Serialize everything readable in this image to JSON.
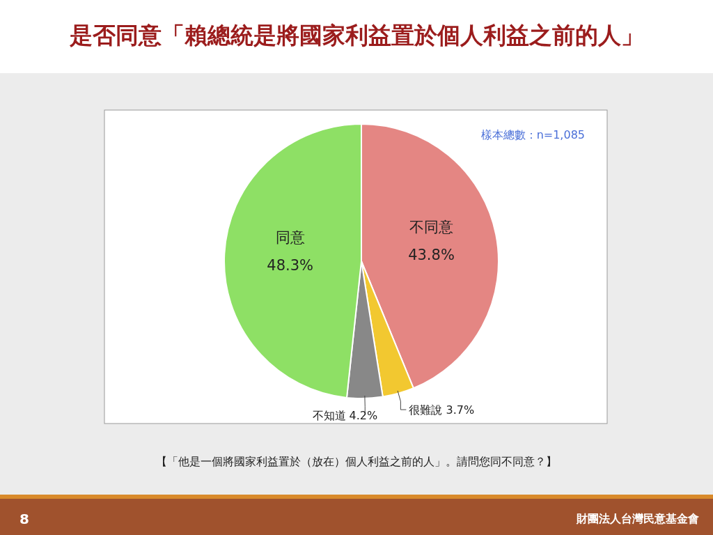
{
  "chart_data": {
    "type": "pie",
    "title": "是否同意「賴總統是將國家利益置於個人利益之前的人」",
    "categories": [
      "不同意",
      "很難說",
      "不知道",
      "同意"
    ],
    "values": [
      43.8,
      3.7,
      4.2,
      48.3
    ],
    "colors": [
      "#e48683",
      "#f2c830",
      "#888888",
      "#8ee065"
    ],
    "value_labels": [
      "43.8%",
      "3.7%",
      "4.2%",
      "48.3%"
    ],
    "legend": false,
    "annotations": [
      "樣本總數：n=1,085",
      "【「他是一個將國家利益置於（放在）個人利益之前的人」。請問您同不同意？】",
      "8",
      "財團法人台灣民意基金會"
    ]
  }
}
